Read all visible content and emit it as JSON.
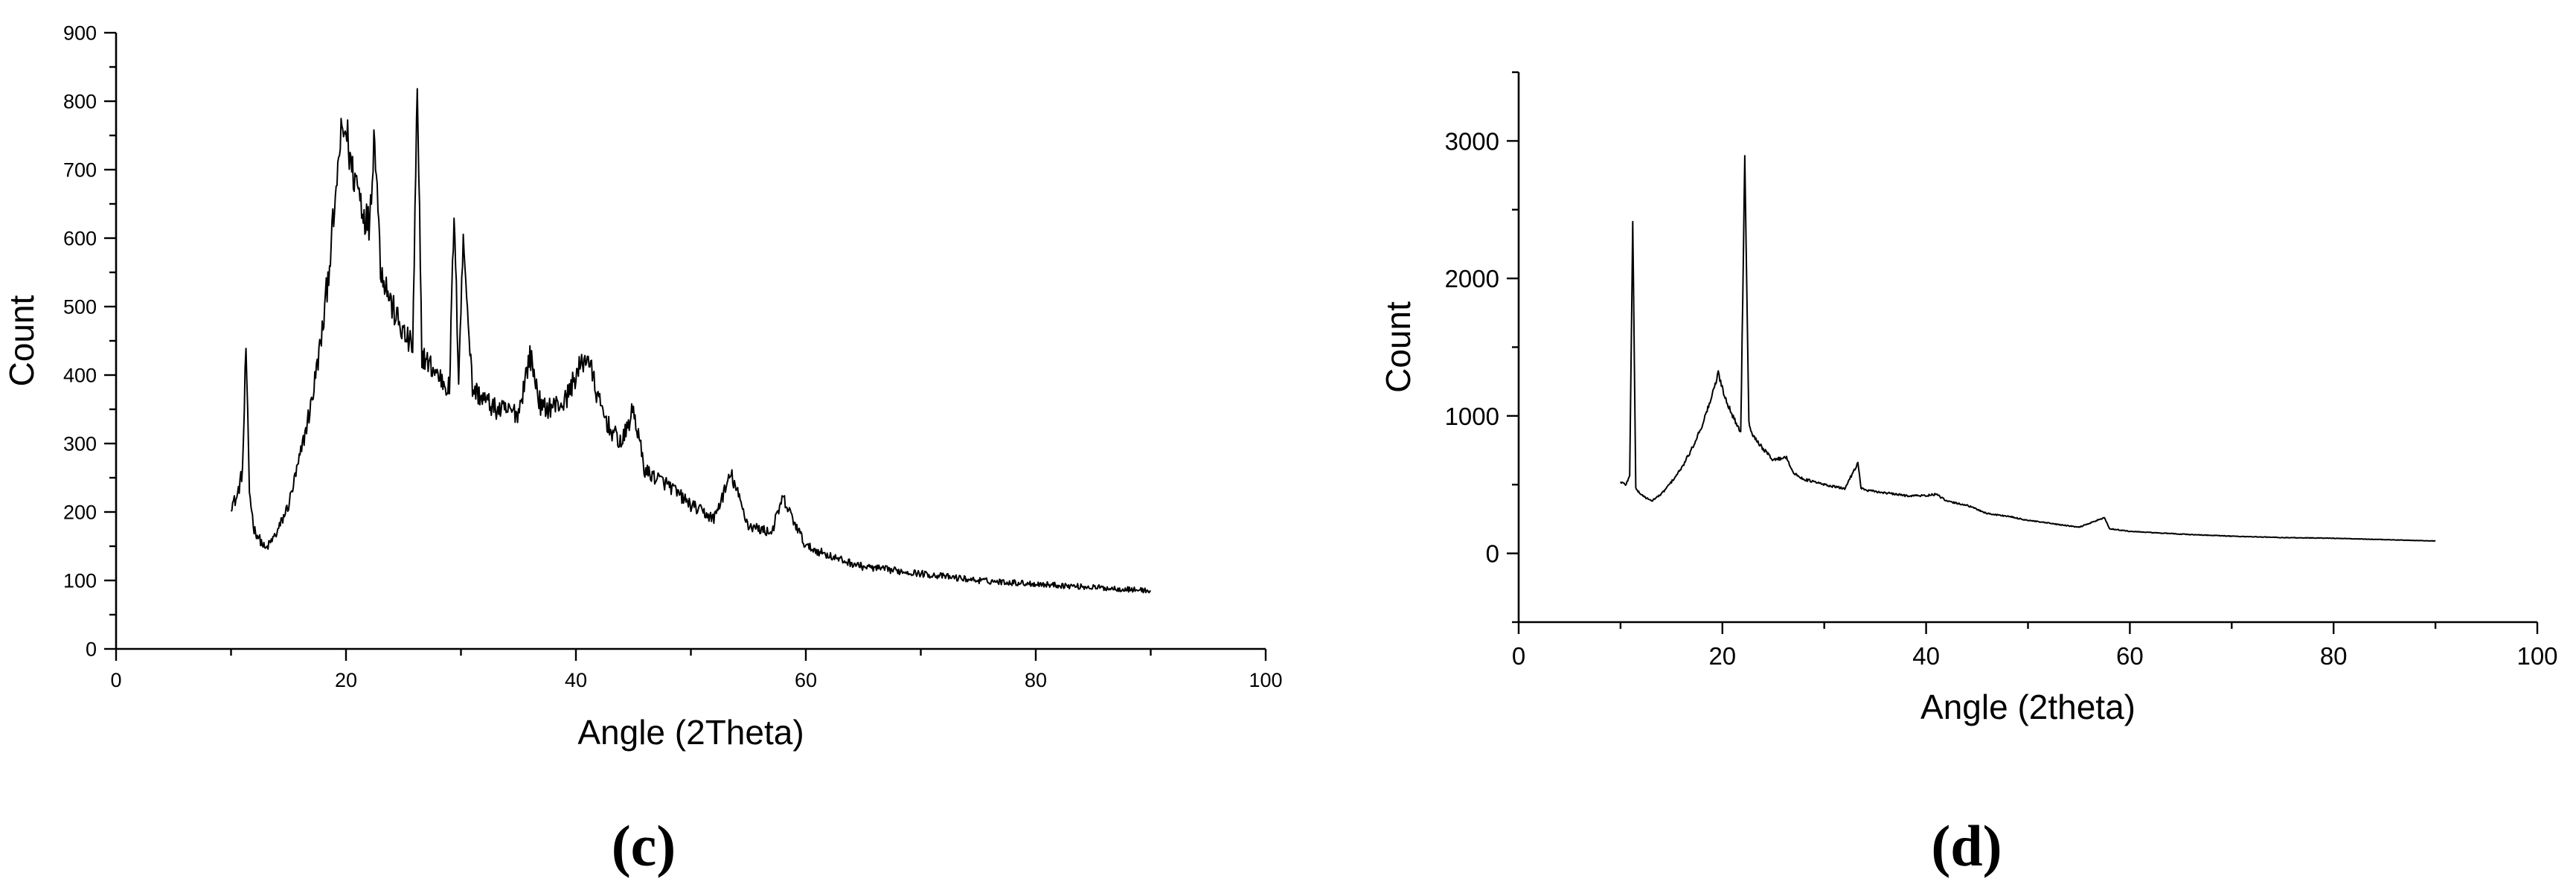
{
  "chart_data": [
    {
      "type": "line",
      "panel_label": "(c)",
      "xlabel": "Angle (2Theta)",
      "ylabel": "Count",
      "xlim": [
        0,
        100
      ],
      "ylim": [
        0,
        900
      ],
      "x_ticks": [
        0,
        20,
        40,
        60,
        80,
        100
      ],
      "y_ticks": [
        0,
        100,
        200,
        300,
        400,
        500,
        600,
        700,
        800,
        900
      ],
      "x_tick_labels": [
        "0",
        "20",
        "40",
        "60",
        "80",
        "100"
      ],
      "y_tick_labels": [
        "0",
        "100",
        "200",
        "300",
        "400",
        "500",
        "600",
        "700",
        "800",
        "900"
      ],
      "grid": false,
      "series": [
        {
          "color": "#000000",
          "x": [
            10,
            10.5,
            11,
            11.3,
            11.6,
            12,
            13,
            14,
            15,
            16,
            17,
            18,
            19,
            19.5,
            20,
            20.5,
            21,
            21.5,
            22,
            22.5,
            23,
            24,
            25,
            25.8,
            26.2,
            26.6,
            27,
            28,
            29,
            29.4,
            29.8,
            30.2,
            31,
            33,
            35,
            36,
            37,
            39,
            40,
            41,
            42,
            43,
            44,
            45,
            46,
            48,
            50,
            52,
            53.5,
            55,
            57,
            58,
            60,
            63,
            65,
            70,
            75,
            80,
            85,
            90
          ],
          "y": [
            210,
            220,
            260,
            440,
            230,
            175,
            145,
            170,
            210,
            280,
            360,
            470,
            640,
            740,
            760,
            700,
            680,
            640,
            620,
            760,
            560,
            500,
            460,
            440,
            815,
            430,
            420,
            400,
            380,
            635,
            400,
            600,
            380,
            350,
            345,
            430,
            350,
            360,
            400,
            430,
            360,
            320,
            300,
            350,
            260,
            240,
            210,
            190,
            255,
            180,
            170,
            220,
            150,
            130,
            120,
            110,
            100,
            95,
            90,
            85
          ]
        }
      ]
    },
    {
      "type": "line",
      "panel_label": "(d)",
      "xlabel": "Angle (2theta)",
      "ylabel": "Count",
      "xlim": [
        0,
        100
      ],
      "ylim": [
        -500,
        3500
      ],
      "x_ticks": [
        0,
        20,
        40,
        60,
        80,
        100
      ],
      "y_ticks": [
        0,
        1000,
        2000,
        3000
      ],
      "x_tick_labels": [
        "0",
        "20",
        "40",
        "60",
        "80",
        "100"
      ],
      "y_tick_labels": [
        "0",
        "1000",
        "2000",
        "3000"
      ],
      "grid": false,
      "series": [
        {
          "color": "#000000",
          "x": [
            10,
            10.5,
            10.9,
            11.2,
            11.5,
            12,
            13,
            14,
            15,
            16,
            17,
            18,
            19,
            19.6,
            20.2,
            21,
            21.8,
            22.2,
            22.6,
            23,
            24,
            25,
            26.3,
            27,
            28,
            30,
            32,
            33.3,
            33.6,
            34,
            36,
            38,
            40,
            41,
            42,
            44,
            46,
            48,
            50,
            55,
            57.5,
            58,
            60,
            65,
            70,
            75,
            80,
            85,
            90
          ],
          "y": [
            520,
            500,
            560,
            2420,
            470,
            430,
            380,
            430,
            520,
            620,
            760,
            930,
            1150,
            1310,
            1150,
            1000,
            880,
            2890,
            950,
            860,
            760,
            680,
            700,
            580,
            540,
            500,
            470,
            660,
            480,
            460,
            440,
            420,
            420,
            430,
            380,
            350,
            290,
            270,
            240,
            190,
            260,
            180,
            160,
            140,
            125,
            115,
            110,
            100,
            90
          ]
        }
      ]
    }
  ]
}
